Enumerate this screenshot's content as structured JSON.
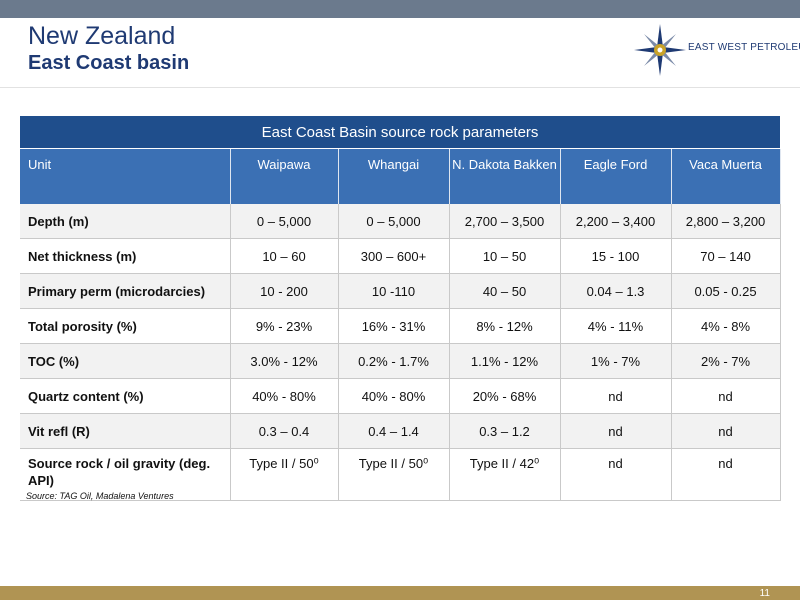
{
  "header": {
    "title": "New Zealand",
    "subtitle": "East Coast basin",
    "logo_text": "EAST WEST PETROLEUM"
  },
  "table": {
    "title": "East Coast Basin source rock parameters",
    "columns": [
      "Unit",
      "Waipawa",
      "Whangai",
      "N. Dakota Bakken",
      "Eagle Ford",
      "Vaca Muerta"
    ],
    "rows": [
      {
        "label": "Depth (m)",
        "cells": [
          "0 – 5,000",
          "0 – 5,000",
          "2,700 – 3,500",
          "2,200 – 3,400",
          "2,800 – 3,200"
        ]
      },
      {
        "label": "Net thickness (m)",
        "cells": [
          "10 – 60",
          "300 – 600+",
          "10 – 50",
          "15 - 100",
          "70 – 140"
        ]
      },
      {
        "label": "Primary perm (microdarcies)",
        "cells": [
          "10 - 200",
          "10 -110",
          "40 – 50",
          "0.04 – 1.3",
          "0.05 - 0.25"
        ]
      },
      {
        "label": "Total porosity (%)",
        "cells": [
          "9% - 23%",
          "16% - 31%",
          "8% - 12%",
          "4% - 11%",
          "4% - 8%"
        ]
      },
      {
        "label": "TOC (%)",
        "cells": [
          "3.0% - 12%",
          "0.2% - 1.7%",
          "1.1% - 12%",
          "1% - 7%",
          "2% - 7%"
        ]
      },
      {
        "label": "Quartz content (%)",
        "cells": [
          "40% - 80%",
          "40% - 80%",
          "20% - 68%",
          "nd",
          "nd"
        ]
      },
      {
        "label": "Vit refl (R)",
        "cells": [
          "0.3 – 0.4",
          "0.4 – 1.4",
          "0.3 – 1.2",
          "nd",
          "nd"
        ]
      },
      {
        "label": "Source rock / oil gravity (deg. API)",
        "cells": [
          "Type II / 50⁰",
          "Type II / 50⁰",
          "Type II / 42⁰",
          "nd",
          "nd"
        ]
      }
    ]
  },
  "footer": {
    "source": "Source: TAG Oil, Madalena Ventures",
    "page_number": "11"
  },
  "colors": {
    "title_blue": "#1f3a73",
    "table_title_bg": "#1f4e8c",
    "table_header_bg": "#3b70b4",
    "top_bar": "#6b7a8d",
    "bottom_bar": "#b09453"
  }
}
